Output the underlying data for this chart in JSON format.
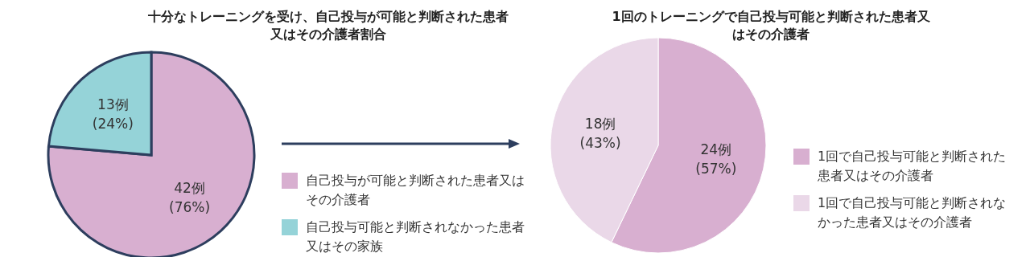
{
  "chart_data": [
    {
      "type": "pie",
      "title": "十分なトレーニングを受け、自己投与が可能と判断された患者又はその介護者割合",
      "categories": [
        "自己投与が可能と判断された患者又はその介護者",
        "自己投与可能と判断されなかった患者又はその家族"
      ],
      "values": [
        42,
        13
      ],
      "colors": [
        "#d8afd0",
        "#95d3d8"
      ],
      "value_labels": [
        "42例\n(76%)",
        "13例\n(24%)"
      ],
      "legend": "right"
    },
    {
      "type": "pie",
      "title": "1回のトレーニングで自己投与可能と判断された患者又はその介護者",
      "categories": [
        "1回で自己投与可能と判断された患者又はその介護者",
        "1回で自己投与可能と判断されなかった患者又はその介護者"
      ],
      "values": [
        24,
        18
      ],
      "colors": [
        "#d8afd0",
        "#ead8e8"
      ],
      "value_labels": [
        "24例\n(57%)",
        "18例\n(43%)"
      ],
      "legend": "right"
    }
  ]
}
